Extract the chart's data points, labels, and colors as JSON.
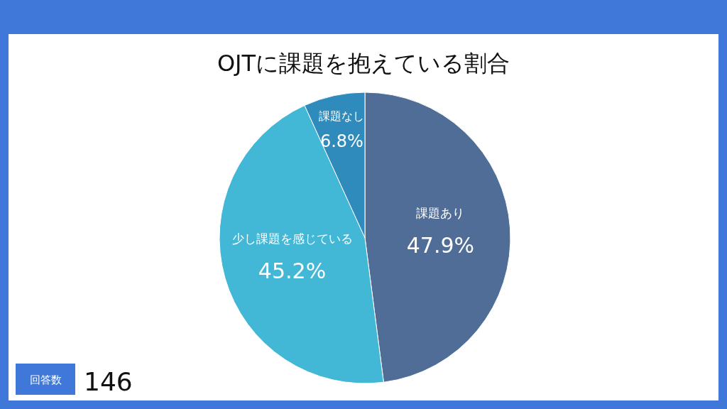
{
  "chart_data": {
    "type": "pie",
    "title": "OJTに課題を抱えている割合",
    "categories": [
      "課題あり",
      "少し課題を感じている",
      "課題なし"
    ],
    "values": [
      47.9,
      45.2,
      6.8
    ],
    "value_labels": [
      "47.9%",
      "45.2%",
      "6.8%"
    ],
    "colors": [
      "#4f6d96",
      "#42b7d6",
      "#2e8bbb"
    ],
    "legend": false,
    "annotations": [
      "回答数",
      "146"
    ]
  }
}
